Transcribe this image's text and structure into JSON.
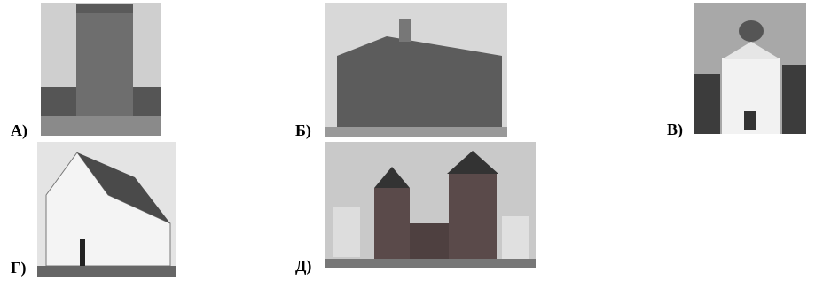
{
  "items": [
    {
      "label": "А)"
    },
    {
      "label": "Б)"
    },
    {
      "label": "В)"
    },
    {
      "label": "Г)"
    },
    {
      "label": "Д)"
    }
  ]
}
